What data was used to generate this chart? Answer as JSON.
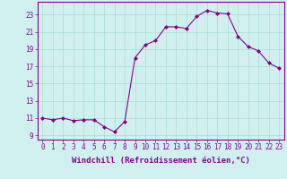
{
  "x": [
    0,
    1,
    2,
    3,
    4,
    5,
    6,
    7,
    8,
    9,
    10,
    11,
    12,
    13,
    14,
    15,
    16,
    17,
    18,
    19,
    20,
    21,
    22,
    23
  ],
  "y": [
    11.0,
    10.8,
    11.0,
    10.7,
    10.8,
    10.8,
    10.0,
    9.4,
    10.6,
    18.0,
    19.5,
    20.0,
    21.6,
    21.6,
    21.4,
    22.8,
    23.5,
    23.2,
    23.1,
    20.5,
    19.3,
    18.8,
    17.4,
    16.8
  ],
  "line_color": "#880088",
  "marker": "D",
  "marker_size": 2,
  "bg_color": "#d0f0f0",
  "grid_color": "#aaddcc",
  "xlabel": "Windchill (Refroidissement éolien,°C)",
  "ylabel": "",
  "xlim": [
    -0.5,
    23.5
  ],
  "ylim": [
    8.5,
    24.5
  ],
  "yticks": [
    9,
    11,
    13,
    15,
    17,
    19,
    21,
    23
  ],
  "xticks": [
    0,
    1,
    2,
    3,
    4,
    5,
    6,
    7,
    8,
    9,
    10,
    11,
    12,
    13,
    14,
    15,
    16,
    17,
    18,
    19,
    20,
    21,
    22,
    23
  ],
  "xlabel_fontsize": 6.5,
  "tick_fontsize": 5.5,
  "label_color": "#880088",
  "spine_color": "#880088"
}
